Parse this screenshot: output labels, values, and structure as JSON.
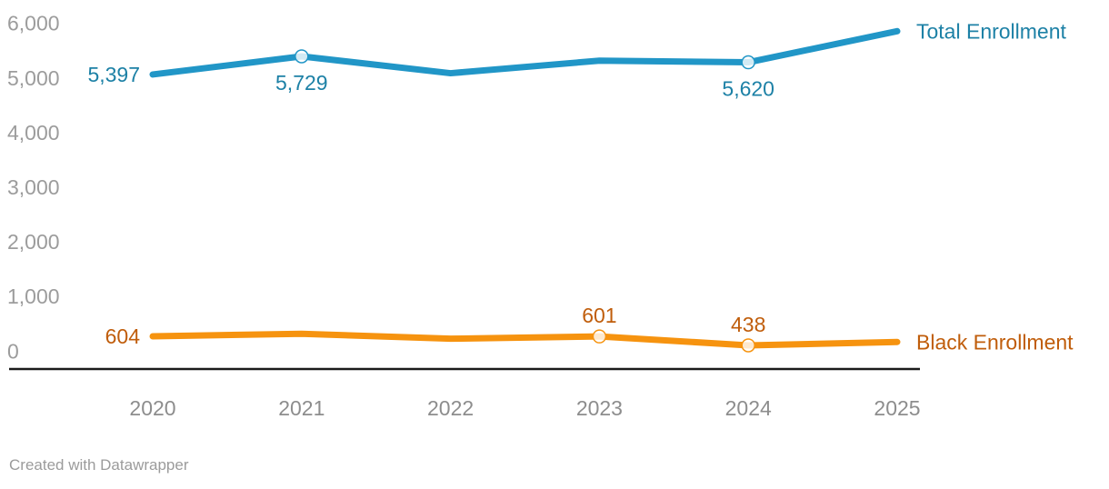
{
  "chart_data": {
    "type": "line",
    "title": "",
    "x": [
      2020,
      2021,
      2022,
      2023,
      2024,
      2025
    ],
    "x_tick_labels": [
      "2020",
      "2021",
      "2022",
      "2023",
      "2024",
      "2025"
    ],
    "y_ticks": [
      {
        "value": 0,
        "label": "0"
      },
      {
        "value": 1000,
        "label": "1,000"
      },
      {
        "value": 2000,
        "label": "2,000"
      },
      {
        "value": 3000,
        "label": "3,000"
      },
      {
        "value": 4000,
        "label": "4,000"
      },
      {
        "value": 5000,
        "label": "5,000"
      },
      {
        "value": 6000,
        "label": "6,000"
      }
    ],
    "ylim": [
      0,
      6600
    ],
    "grid": false,
    "legend_position": "right-of-line-ends",
    "series": [
      {
        "name": "Total Enrollment",
        "values": [
          5397,
          5729,
          5420,
          5650,
          5620,
          6190
        ],
        "line_color": "#2196c7",
        "label_color": "#1d81a6",
        "point_labels": [
          {
            "index": 0,
            "text": "5,397",
            "position": "left"
          },
          {
            "index": 1,
            "text": "5,729",
            "position": "below"
          },
          {
            "index": 4,
            "text": "5,620",
            "position": "below"
          }
        ],
        "markers": [
          1,
          4
        ]
      },
      {
        "name": "Black Enrollment",
        "values": [
          604,
          650,
          560,
          601,
          438,
          500
        ],
        "line_color": "#f6930f",
        "label_color": "#c05d0b",
        "point_labels": [
          {
            "index": 0,
            "text": "604",
            "position": "left"
          },
          {
            "index": 3,
            "text": "601",
            "position": "above"
          },
          {
            "index": 4,
            "text": "438",
            "position": "above"
          }
        ],
        "markers": [
          3,
          4
        ]
      }
    ],
    "axis_color": "#1a1a1a",
    "tick_color": "#9c9c9c",
    "year_color": "#8d8d8d"
  },
  "footer": {
    "credit": "Created with Datawrapper"
  }
}
